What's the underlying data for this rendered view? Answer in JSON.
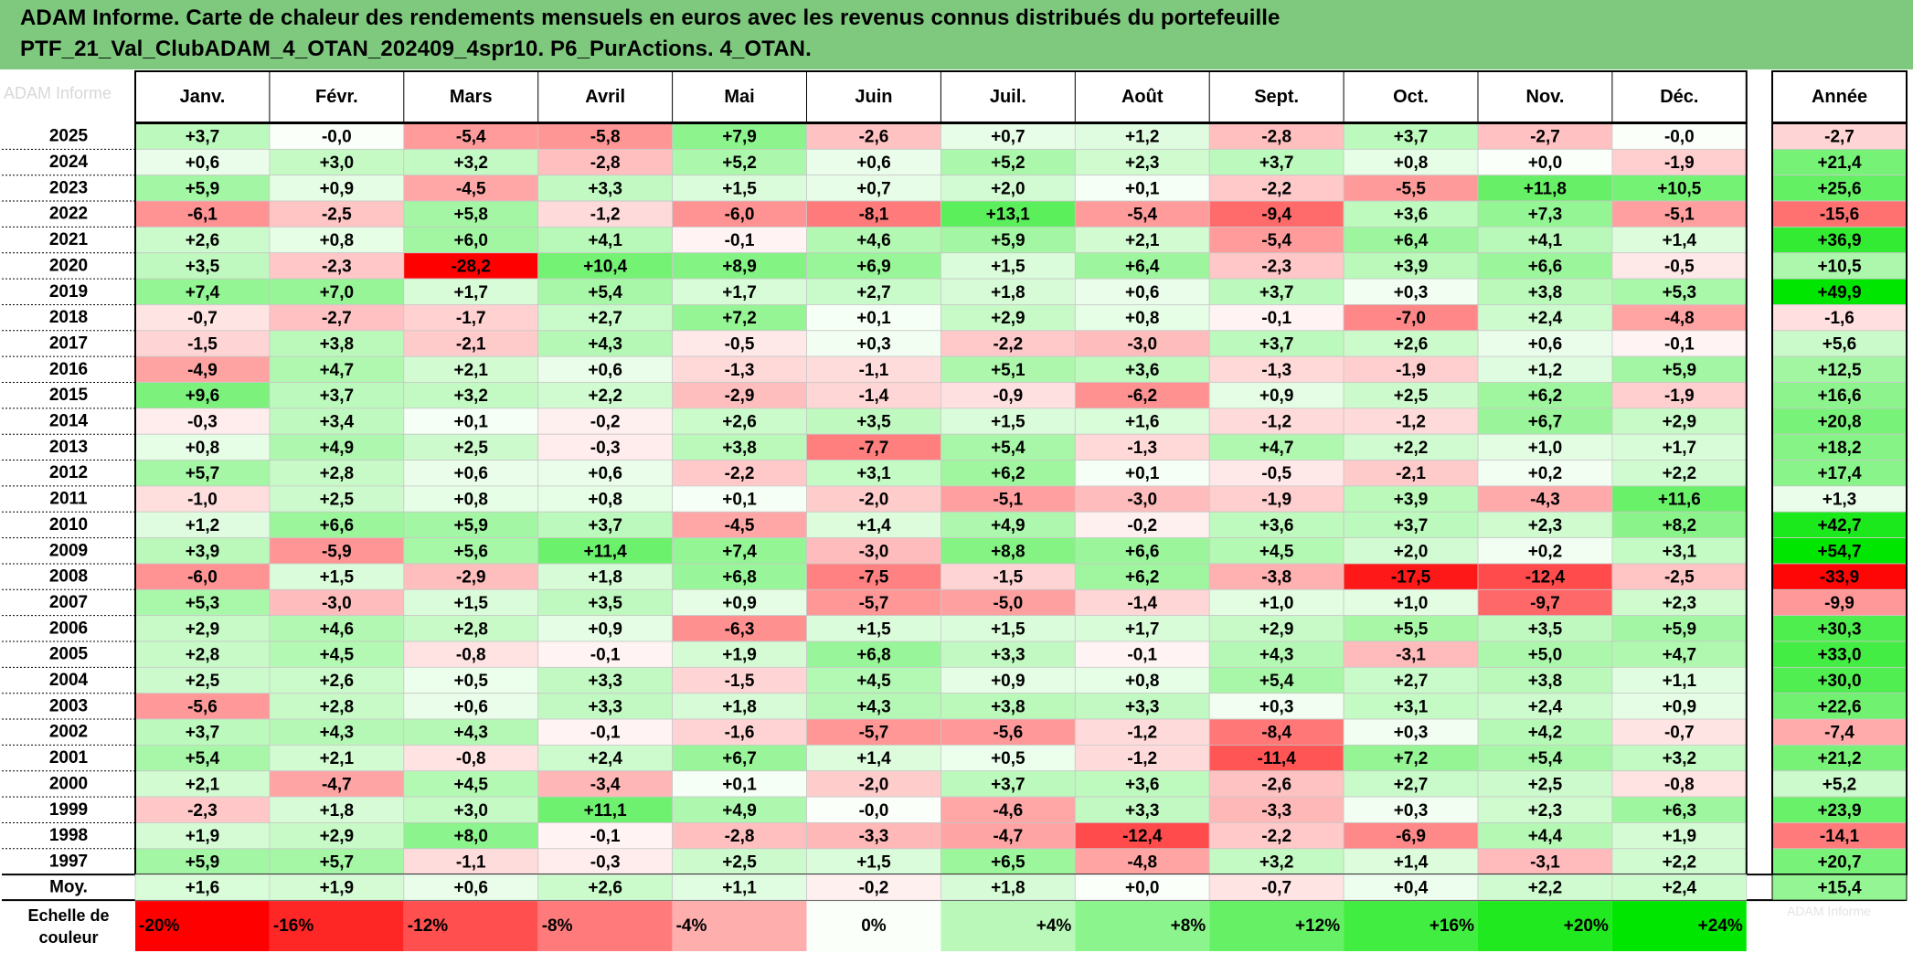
{
  "title": {
    "line1": "ADAM Informe. Carte de chaleur des rendements mensuels en euros avec les revenus connus distribués du portefeuille",
    "line2": "PTF_21_Val_ClubADAM_4_OTAN_202409_4spr10. P6_PurActions. 4_OTAN."
  },
  "watermark": "ADAM Informe",
  "watermark_bottom": "ADAM Informe",
  "colors": {
    "title_bg": "#7fc97f",
    "negative_max": "#ff0000",
    "positive_max": "#00e600",
    "neutral": "#ffffff",
    "grid": "#c8c8c8",
    "border": "#000000"
  },
  "chart_data": {
    "type": "heatmap",
    "columns": [
      "Janv.",
      "Févr.",
      "Mars",
      "Avril",
      "Mai",
      "Juin",
      "Juil.",
      "Août",
      "Sept.",
      "Oct.",
      "Nov.",
      "Déc."
    ],
    "year_column": "Année",
    "average_label": "Moy.",
    "rows": [
      {
        "year": "2025",
        "values": [
          3.7,
          -0.0,
          -5.4,
          -5.8,
          7.9,
          -2.6,
          0.7,
          1.2,
          -2.8,
          3.7,
          -2.7,
          -0.0
        ],
        "annual": -2.7
      },
      {
        "year": "2024",
        "values": [
          0.6,
          3.0,
          3.2,
          -2.8,
          5.2,
          0.6,
          5.2,
          2.3,
          3.7,
          0.8,
          0.0,
          -1.9
        ],
        "annual": 21.4
      },
      {
        "year": "2023",
        "values": [
          5.9,
          0.9,
          -4.5,
          3.3,
          1.5,
          0.7,
          2.0,
          0.1,
          -2.2,
          -5.5,
          11.8,
          10.5
        ],
        "annual": 25.6
      },
      {
        "year": "2022",
        "values": [
          -6.1,
          -2.5,
          5.8,
          -1.2,
          -6.0,
          -8.1,
          13.1,
          -5.4,
          -9.4,
          3.6,
          7.3,
          -5.1
        ],
        "annual": -15.6
      },
      {
        "year": "2021",
        "values": [
          2.6,
          0.8,
          6.0,
          4.1,
          -0.1,
          4.6,
          5.9,
          2.1,
          -5.4,
          6.4,
          4.1,
          1.4
        ],
        "annual": 36.9
      },
      {
        "year": "2020",
        "values": [
          3.5,
          -2.3,
          -28.2,
          10.4,
          8.9,
          6.9,
          1.5,
          6.4,
          -2.3,
          3.9,
          6.6,
          -0.5
        ],
        "annual": 10.5
      },
      {
        "year": "2019",
        "values": [
          7.4,
          7.0,
          1.7,
          5.4,
          1.7,
          2.7,
          1.8,
          0.6,
          3.7,
          0.3,
          3.8,
          5.3
        ],
        "annual": 49.9
      },
      {
        "year": "2018",
        "values": [
          -0.7,
          -2.7,
          -1.7,
          2.7,
          7.2,
          0.1,
          2.9,
          0.8,
          -0.1,
          -7.0,
          2.4,
          -4.8
        ],
        "annual": -1.6
      },
      {
        "year": "2017",
        "values": [
          -1.5,
          3.8,
          -2.1,
          4.3,
          -0.5,
          0.3,
          -2.2,
          -3.0,
          3.7,
          2.6,
          0.6,
          -0.1
        ],
        "annual": 5.6
      },
      {
        "year": "2016",
        "values": [
          -4.9,
          4.7,
          2.1,
          0.6,
          -1.3,
          -1.1,
          5.1,
          3.6,
          -1.3,
          -1.9,
          1.2,
          5.9
        ],
        "annual": 12.5
      },
      {
        "year": "2015",
        "values": [
          9.6,
          3.7,
          3.2,
          2.2,
          -2.9,
          -1.4,
          -0.9,
          -6.2,
          0.9,
          2.5,
          6.2,
          -1.9
        ],
        "annual": 16.6
      },
      {
        "year": "2014",
        "values": [
          -0.3,
          3.4,
          0.1,
          -0.2,
          2.6,
          3.5,
          1.5,
          1.6,
          -1.2,
          -1.2,
          6.7,
          2.9
        ],
        "annual": 20.8
      },
      {
        "year": "2013",
        "values": [
          0.8,
          4.9,
          2.5,
          -0.3,
          3.8,
          -7.7,
          5.4,
          -1.3,
          4.7,
          2.2,
          1.0,
          1.7
        ],
        "annual": 18.2
      },
      {
        "year": "2012",
        "values": [
          5.7,
          2.8,
          0.6,
          0.6,
          -2.2,
          3.1,
          6.2,
          0.1,
          -0.5,
          -2.1,
          0.2,
          2.2
        ],
        "annual": 17.4
      },
      {
        "year": "2011",
        "values": [
          -1.0,
          2.5,
          0.8,
          0.8,
          0.1,
          -2.0,
          -5.1,
          -3.0,
          -1.9,
          3.9,
          -4.3,
          11.6
        ],
        "annual": 1.3
      },
      {
        "year": "2010",
        "values": [
          1.2,
          6.6,
          5.9,
          3.7,
          -4.5,
          1.4,
          4.9,
          -0.2,
          3.6,
          3.7,
          2.3,
          8.2
        ],
        "annual": 42.7
      },
      {
        "year": "2009",
        "values": [
          3.9,
          -5.9,
          5.6,
          11.4,
          7.4,
          -3.0,
          8.8,
          6.6,
          4.5,
          2.0,
          0.2,
          3.1
        ],
        "annual": 54.7
      },
      {
        "year": "2008",
        "values": [
          -6.0,
          1.5,
          -2.9,
          1.8,
          6.8,
          -7.5,
          -1.5,
          6.2,
          -3.8,
          -17.5,
          -12.4,
          -2.5
        ],
        "annual": -33.9
      },
      {
        "year": "2007",
        "values": [
          5.3,
          -3.0,
          1.5,
          3.5,
          0.9,
          -5.7,
          -5.0,
          -1.4,
          1.0,
          1.0,
          -9.7,
          2.3
        ],
        "annual": -9.9
      },
      {
        "year": "2006",
        "values": [
          2.9,
          4.6,
          2.8,
          0.9,
          -6.3,
          1.5,
          1.5,
          1.7,
          2.9,
          5.5,
          3.5,
          5.9
        ],
        "annual": 30.3
      },
      {
        "year": "2005",
        "values": [
          2.8,
          4.5,
          -0.8,
          -0.1,
          1.9,
          6.8,
          3.3,
          -0.1,
          4.3,
          -3.1,
          5.0,
          4.7
        ],
        "annual": 33.0
      },
      {
        "year": "2004",
        "values": [
          2.5,
          2.6,
          0.5,
          3.3,
          -1.5,
          4.5,
          0.9,
          0.8,
          5.4,
          2.7,
          3.8,
          1.1
        ],
        "annual": 30.0
      },
      {
        "year": "2003",
        "values": [
          -5.6,
          2.8,
          0.6,
          3.3,
          1.8,
          4.3,
          3.8,
          3.3,
          0.3,
          3.1,
          2.4,
          0.9
        ],
        "annual": 22.6
      },
      {
        "year": "2002",
        "values": [
          3.7,
          4.3,
          4.3,
          -0.1,
          -1.6,
          -5.7,
          -5.6,
          -1.2,
          -8.4,
          0.3,
          4.2,
          -0.7
        ],
        "annual": -7.4
      },
      {
        "year": "2001",
        "values": [
          5.4,
          2.1,
          -0.8,
          2.4,
          6.7,
          1.4,
          0.5,
          -1.2,
          -11.4,
          7.2,
          5.4,
          3.2
        ],
        "annual": 21.2
      },
      {
        "year": "2000",
        "values": [
          2.1,
          -4.7,
          4.5,
          -3.4,
          0.1,
          -2.0,
          3.7,
          3.6,
          -2.6,
          2.7,
          2.5,
          -0.8
        ],
        "annual": 5.2
      },
      {
        "year": "1999",
        "values": [
          -2.3,
          1.8,
          3.0,
          11.1,
          4.9,
          -0.0,
          -4.6,
          3.3,
          -3.3,
          0.3,
          2.3,
          6.3
        ],
        "annual": 23.9
      },
      {
        "year": "1998",
        "values": [
          1.9,
          2.9,
          8.0,
          -0.1,
          -2.8,
          -3.3,
          -4.7,
          -12.4,
          -2.2,
          -6.9,
          4.4,
          1.9
        ],
        "annual": -14.1
      },
      {
        "year": "1997",
        "values": [
          5.9,
          5.7,
          -1.1,
          -0.3,
          2.5,
          1.5,
          6.5,
          -4.8,
          3.2,
          1.4,
          -3.1,
          2.2
        ],
        "annual": 20.7
      }
    ],
    "average": {
      "values": [
        1.6,
        1.9,
        0.6,
        2.6,
        1.1,
        -0.2,
        1.8,
        0.0,
        -0.7,
        0.4,
        2.2,
        2.4
      ],
      "annual": 15.4
    },
    "color_scale": {
      "label": "Echelle de couleur",
      "steps": [
        "-20%",
        "-16%",
        "-12%",
        "-8%",
        "-4%",
        "0%",
        "+4%",
        "+8%",
        "+12%",
        "+16%",
        "+20%",
        "+24%"
      ],
      "step_values": [
        -20,
        -16,
        -12,
        -8,
        -4,
        0,
        4,
        8,
        12,
        16,
        20,
        24
      ]
    },
    "monthly_color_range": [
      -20,
      24
    ],
    "annual_color_range": [
      -35,
      50
    ]
  }
}
